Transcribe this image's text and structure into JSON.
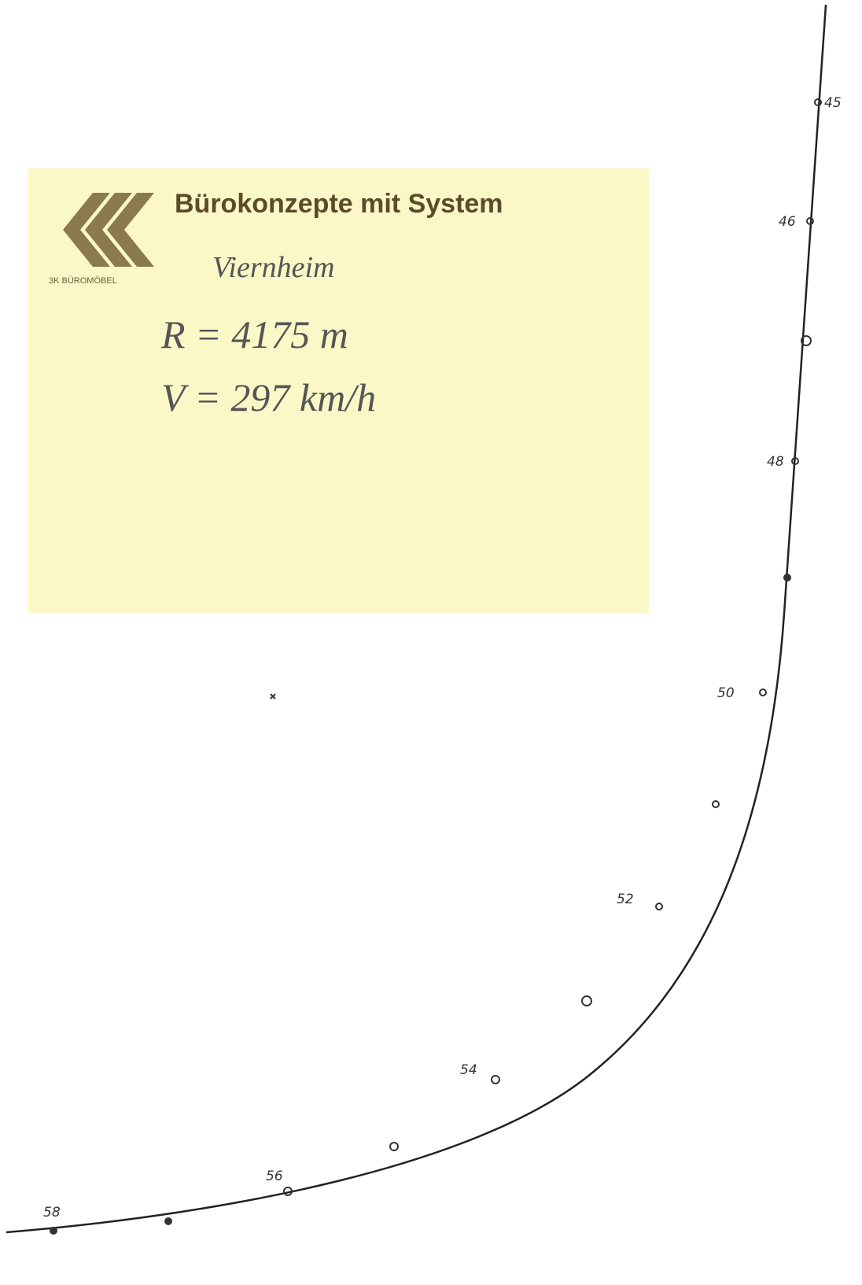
{
  "note": {
    "brand": "3K BÜROMÖBEL",
    "slogan": "Bürokonzepte mit System",
    "place": "Viernheim",
    "radius": "R = 4175 m",
    "speed": "V = 297 km/h"
  },
  "curve": {
    "labels": [
      "45",
      "46",
      "48",
      "50",
      "52",
      "54",
      "56",
      "58"
    ]
  }
}
